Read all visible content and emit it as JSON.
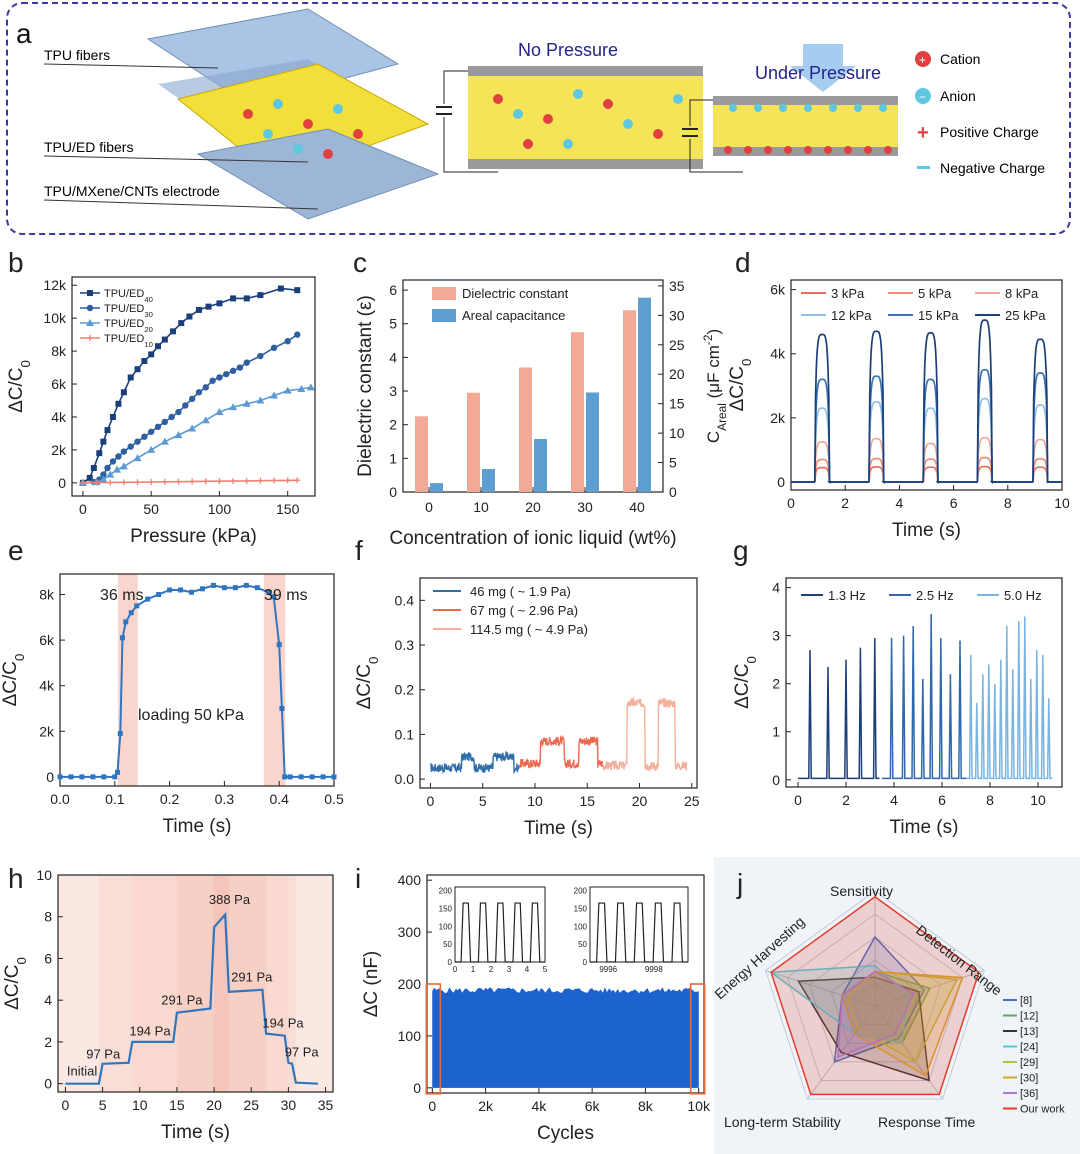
{
  "panel_a": {
    "label": "a",
    "layers": [
      "TPU fibers",
      "TPU/ED fibers",
      "TPU/MXene/CNTs electrode"
    ],
    "state_no_pressure": "No Pressure",
    "state_under_pressure": "Under Pressure",
    "legend": [
      "Cation",
      "Anion",
      "Positive Charge",
      "Negative Charge"
    ],
    "colors": {
      "border": "#3a3aa0",
      "yellow": "#f3df3a",
      "blue": "#8fb3d8"
    }
  },
  "chart_data": [
    {
      "id": "b",
      "label": "b",
      "type": "line",
      "xlabel": "Pressure (kPa)",
      "ylabel": "ΔC/C",
      "ylabel_sub": "0",
      "xlim": [
        -8,
        170
      ],
      "ylim": [
        -800,
        12500
      ],
      "xticks": [
        0,
        50,
        100,
        150
      ],
      "xtick_labels": [
        "0",
        "50",
        "100",
        "150"
      ],
      "yticks": [
        0,
        2000,
        4000,
        6000,
        8000,
        10000,
        12000
      ],
      "ytick_labels": [
        "0",
        "2k",
        "4k",
        "6k",
        "8k",
        "10k",
        "12k"
      ],
      "series": [
        {
          "name": "TPU/ED",
          "sub": "40",
          "color": "#1b3f7a",
          "marker": "square",
          "x": [
            0,
            5,
            8,
            12,
            15,
            18,
            22,
            26,
            30,
            35,
            40,
            45,
            50,
            55,
            60,
            66,
            72,
            78,
            85,
            92,
            100,
            110,
            120,
            130,
            145,
            157
          ],
          "y": [
            0,
            300,
            900,
            1800,
            2500,
            3200,
            4000,
            4800,
            5500,
            6400,
            6900,
            7400,
            7800,
            8300,
            8700,
            9200,
            9700,
            10100,
            10500,
            10700,
            10900,
            11200,
            11200,
            11400,
            11800,
            11700
          ]
        },
        {
          "name": "TPU/ED",
          "sub": "30",
          "color": "#2f5fa0",
          "marker": "circle",
          "x": [
            0,
            8,
            12,
            15,
            18,
            22,
            26,
            30,
            35,
            40,
            45,
            50,
            55,
            60,
            65,
            70,
            75,
            80,
            85,
            90,
            95,
            100,
            105,
            110,
            115,
            120,
            130,
            140,
            150,
            157
          ],
          "y": [
            0,
            50,
            200,
            500,
            900,
            1300,
            1600,
            1900,
            2200,
            2500,
            2800,
            3100,
            3400,
            3700,
            4000,
            4300,
            4700,
            5100,
            5500,
            5800,
            6200,
            6400,
            6600,
            6800,
            7000,
            7300,
            7700,
            8200,
            8600,
            9000
          ]
        },
        {
          "name": "TPU/ED",
          "sub": "20",
          "color": "#5a9bd4",
          "marker": "triangle",
          "x": [
            0,
            10,
            15,
            20,
            25,
            30,
            40,
            50,
            60,
            70,
            80,
            90,
            100,
            110,
            120,
            130,
            140,
            150,
            160,
            167
          ],
          "y": [
            0,
            50,
            200,
            500,
            800,
            1000,
            1500,
            2000,
            2500,
            2900,
            3300,
            3800,
            4300,
            4600,
            4800,
            5000,
            5300,
            5600,
            5700,
            5800
          ]
        },
        {
          "name": "TPU/ED",
          "sub": "10",
          "color": "#f08070",
          "marker": "plus",
          "x": [
            0,
            10,
            20,
            30,
            40,
            50,
            60,
            70,
            80,
            90,
            100,
            110,
            120,
            130,
            140,
            150,
            157
          ],
          "y": [
            0,
            10,
            20,
            30,
            40,
            50,
            60,
            70,
            80,
            90,
            100,
            110,
            120,
            130,
            140,
            150,
            160
          ]
        }
      ]
    },
    {
      "id": "c",
      "label": "c",
      "type": "bar",
      "xlabel": "Concentration of ionic liquid (wt%)",
      "ylabel": "Dielectric constant (ε)",
      "y2label": "C",
      "y2label_sub": "Areal",
      "y2label_tail": " (μF cm",
      "y2label_sup": "-2",
      "y2label_end": ")",
      "categories": [
        "0",
        "10",
        "20",
        "30",
        "40"
      ],
      "ylim": [
        0,
        6.3
      ],
      "yticks": [
        0,
        1,
        2,
        3,
        4,
        5,
        6
      ],
      "ytick_labels": [
        "0",
        "1",
        "2",
        "3",
        "4",
        "5",
        "6"
      ],
      "y2lim": [
        0,
        36
      ],
      "y2ticks": [
        0,
        5,
        10,
        15,
        20,
        25,
        30,
        35
      ],
      "y2tick_labels": [
        "0",
        "5",
        "10",
        "15",
        "20",
        "25",
        "30",
        "35"
      ],
      "series": [
        {
          "name": "Dielectric constant",
          "axis": "left",
          "color": "#f4a896",
          "values": [
            2.25,
            2.95,
            3.7,
            4.75,
            5.4
          ]
        },
        {
          "name": "Areal capacitance",
          "axis": "right",
          "color": "#5d9fd0",
          "values": [
            1.5,
            3.9,
            9.0,
            16.9,
            33.0
          ]
        }
      ]
    },
    {
      "id": "d",
      "label": "d",
      "type": "line",
      "xlabel": "Time (s)",
      "ylabel": "ΔC/C",
      "ylabel_sub": "0",
      "xlim": [
        0,
        10
      ],
      "ylim": [
        -250,
        6300
      ],
      "xticks": [
        0,
        2,
        4,
        6,
        8,
        10
      ],
      "xtick_labels": [
        "0",
        "2",
        "4",
        "6",
        "8",
        "10"
      ],
      "yticks": [
        0,
        2000,
        4000,
        6000
      ],
      "ytick_labels": [
        "0",
        "2k",
        "4k",
        "6k"
      ],
      "pulse_centers": [
        1.15,
        3.15,
        5.15,
        7.15,
        9.2
      ],
      "pulse_half_width": 0.27,
      "series": [
        {
          "name": "3 kPa",
          "color": "#e8705a",
          "peaks": [
            450,
            470,
            460,
            480,
            460
          ]
        },
        {
          "name": "5 kPa",
          "color": "#ef8e78",
          "peaks": [
            700,
            730,
            710,
            760,
            720
          ]
        },
        {
          "name": "8 kPa",
          "color": "#f2a898",
          "peaks": [
            1250,
            1350,
            1200,
            1380,
            1320
          ]
        },
        {
          "name": "12 kPa",
          "color": "#8dc0e6",
          "peaks": [
            2300,
            2500,
            2300,
            2600,
            2400
          ]
        },
        {
          "name": "15 kPa",
          "color": "#3a73b5",
          "peaks": [
            3200,
            3300,
            3200,
            3500,
            3400
          ]
        },
        {
          "name": "25 kPa",
          "color": "#1d3f78",
          "peaks": [
            4600,
            4700,
            4650,
            5050,
            4450
          ]
        }
      ]
    },
    {
      "id": "e",
      "label": "e",
      "type": "line",
      "xlabel": "Time (s)",
      "ylabel": "ΔC/C",
      "ylabel_sub": "0",
      "xlim": [
        0,
        0.5
      ],
      "ylim": [
        -400,
        8900
      ],
      "xticks": [
        0.0,
        0.1,
        0.2,
        0.3,
        0.4,
        0.5
      ],
      "xtick_labels": [
        "0.0",
        "0.1",
        "0.2",
        "0.3",
        "0.4",
        "0.5"
      ],
      "yticks": [
        0,
        2000,
        4000,
        6000,
        8000
      ],
      "ytick_labels": [
        "0",
        "2k",
        "4k",
        "6k",
        "8k"
      ],
      "annotations": [
        "36 ms",
        "39 ms",
        "loading 50 kPa"
      ],
      "shaded_spans": [
        [
          0.106,
          0.142
        ],
        [
          0.372,
          0.411
        ]
      ],
      "series": [
        {
          "name": "loading 50 kPa",
          "color": "#2f75c0",
          "x": [
            0,
            0.02,
            0.04,
            0.06,
            0.08,
            0.1,
            0.105,
            0.11,
            0.114,
            0.12,
            0.13,
            0.14,
            0.16,
            0.18,
            0.2,
            0.22,
            0.24,
            0.26,
            0.28,
            0.3,
            0.32,
            0.34,
            0.36,
            0.38,
            0.39,
            0.4,
            0.405,
            0.41,
            0.42,
            0.44,
            0.46,
            0.48,
            0.5
          ],
          "y": [
            0,
            0,
            0,
            0,
            0,
            0,
            200,
            1900,
            6100,
            6800,
            7200,
            7500,
            7800,
            8000,
            8200,
            8200,
            8100,
            8250,
            8400,
            8300,
            8300,
            8400,
            8300,
            8100,
            7900,
            5800,
            3000,
            0,
            0,
            0,
            0,
            0,
            0
          ]
        }
      ]
    },
    {
      "id": "f",
      "label": "f",
      "type": "line",
      "xlabel": "Time (s)",
      "ylabel": "ΔC/C",
      "ylabel_sub": "0",
      "xlim": [
        -1,
        25.5
      ],
      "ylim": [
        -0.02,
        0.45
      ],
      "xticks": [
        0,
        5,
        10,
        15,
        20,
        25
      ],
      "xtick_labels": [
        "0",
        "5",
        "10",
        "15",
        "20",
        "25"
      ],
      "yticks": [
        0.0,
        0.1,
        0.2,
        0.3,
        0.4
      ],
      "ytick_labels": [
        "0.0",
        "0.1",
        "0.2",
        "0.3",
        "0.4"
      ],
      "series": [
        {
          "name": "46 mg ( ~ 1.9 Pa)",
          "color": "#2f6ea8",
          "t_range": [
            0,
            8.5
          ],
          "base": 0.025,
          "high": 0.05,
          "pulses": [
            [
              3.0,
              4.2
            ],
            [
              6.0,
              8.0
            ]
          ]
        },
        {
          "name": "67 mg ( ~ 2.96 Pa)",
          "color": "#ea6a50",
          "t_range": [
            8.5,
            16.5
          ],
          "base": 0.035,
          "high": 0.085,
          "pulses": [
            [
              10.5,
              12.8
            ],
            [
              14.2,
              16.0
            ]
          ]
        },
        {
          "name": "114.5 mg ( ~ 4.9 Pa)",
          "color": "#f4b09c",
          "t_range": [
            16.5,
            24.5
          ],
          "base": 0.03,
          "high": 0.17,
          "pulses": [
            [
              18.8,
              20.5
            ],
            [
              21.8,
              23.4
            ]
          ]
        }
      ]
    },
    {
      "id": "g",
      "label": "g",
      "type": "line",
      "xlabel": "Time (s)",
      "ylabel": "ΔC/C",
      "ylabel_sub": "0",
      "xlim": [
        -0.5,
        11
      ],
      "ylim": [
        -0.15,
        4.2
      ],
      "xticks": [
        0,
        2,
        4,
        6,
        8,
        10
      ],
      "xtick_labels": [
        "0",
        "2",
        "4",
        "6",
        "8",
        "10"
      ],
      "yticks": [
        0,
        1,
        2,
        3,
        4
      ],
      "ytick_labels": [
        "0",
        "1",
        "2",
        "3",
        "4"
      ],
      "series": [
        {
          "name": "1.3 Hz",
          "color": "#1d3f78",
          "t_range": [
            0,
            3.4
          ],
          "spikes_t": [
            0.5,
            1.25,
            2.0,
            2.6,
            3.2
          ],
          "spikes_h": [
            2.7,
            2.35,
            2.5,
            2.75,
            2.95
          ]
        },
        {
          "name": "2.5 Hz",
          "color": "#2e68ae",
          "t_range": [
            3.5,
            7.0
          ],
          "spikes_t": [
            3.9,
            4.4,
            4.8,
            5.2,
            5.55,
            5.95,
            6.35,
            6.75
          ],
          "spikes_h": [
            2.95,
            3.0,
            3.2,
            2.1,
            3.45,
            2.95,
            2.2,
            2.9
          ]
        },
        {
          "name": "5.0 Hz",
          "color": "#7ab4e0",
          "t_range": [
            7.0,
            10.6
          ],
          "spikes_t": [
            7.2,
            7.45,
            7.7,
            7.95,
            8.2,
            8.45,
            8.7,
            8.95,
            9.2,
            9.45,
            9.7,
            9.95,
            10.2,
            10.45
          ],
          "spikes_h": [
            2.6,
            1.6,
            2.2,
            2.4,
            2.0,
            2.5,
            3.2,
            2.3,
            3.3,
            3.4,
            2.1,
            2.7,
            2.6,
            1.7
          ]
        }
      ]
    },
    {
      "id": "h",
      "label": "h",
      "type": "line",
      "xlabel": "Time (s)",
      "ylabel": "ΔC/C",
      "ylabel_sub": "0",
      "xlim": [
        -1,
        36
      ],
      "ylim": [
        -0.4,
        10
      ],
      "xticks": [
        0,
        5,
        10,
        15,
        20,
        25,
        30,
        35
      ],
      "xtick_labels": [
        "0",
        "5",
        "10",
        "15",
        "20",
        "25",
        "30",
        "35"
      ],
      "yticks": [
        0,
        2,
        4,
        6,
        8,
        10
      ],
      "ytick_labels": [
        "0",
        "2",
        "4",
        "6",
        "8",
        "10"
      ],
      "step_annotations": [
        "Initial",
        "97 Pa",
        "194 Pa",
        "291 Pa",
        "388 Pa",
        "291 Pa",
        "194 Pa",
        "97 Pa"
      ],
      "series": [
        {
          "name": "staircase",
          "color": "#2f75c0",
          "x": [
            0,
            4.5,
            5,
            8.5,
            9,
            14.5,
            15,
            19.5,
            20,
            21.5,
            22,
            26.5,
            27,
            29.5,
            30,
            30.5,
            31,
            34
          ],
          "y": [
            0,
            0,
            0.95,
            1.0,
            2.0,
            2.0,
            3.4,
            3.6,
            7.5,
            8.1,
            4.4,
            4.5,
            2.4,
            2.3,
            1.0,
            0.95,
            0.05,
            0.0
          ]
        }
      ]
    },
    {
      "id": "i",
      "label": "i",
      "type": "area",
      "xlabel": "Cycles",
      "ylabel": "ΔC (nF)",
      "xlim": [
        -200,
        10200
      ],
      "ylim": [
        -10,
        410
      ],
      "xticks": [
        0,
        2000,
        4000,
        6000,
        8000,
        10000
      ],
      "xtick_labels": [
        "0",
        "2k",
        "4k",
        "6k",
        "8k",
        "10k"
      ],
      "yticks": [
        0,
        100,
        200,
        300,
        400
      ],
      "ytick_labels": [
        "0",
        "100",
        "200",
        "300",
        "400"
      ],
      "band_top": 182,
      "color": "#1c63cf",
      "inset_left": {
        "xticks": [
          0,
          1,
          2,
          3,
          4,
          5
        ],
        "xtick_labels": [
          "0",
          "1",
          "2",
          "3",
          "4",
          "5"
        ],
        "yticks": [
          0,
          50,
          100,
          150,
          200
        ],
        "ytick_labels": [
          "0",
          "50",
          "100",
          "150",
          "200"
        ],
        "peak": 165
      },
      "inset_right": {
        "xticks": [
          9996,
          9998
        ],
        "xtick_labels": [
          "9996",
          "9998"
        ],
        "yticks": [
          0,
          50,
          100,
          150,
          200
        ],
        "ytick_labels": [
          "0",
          "50",
          "100",
          "150",
          "200"
        ],
        "peak": 165
      }
    },
    {
      "id": "j",
      "label": "j",
      "type": "radar",
      "axes": [
        "Sensitivity",
        "Detection Range",
        "Response Time",
        "Long-term Stability",
        "Energy Harvesting"
      ],
      "series": [
        {
          "name": "[8]",
          "color": "#4a6fc8",
          "values": [
            0.6,
            0.45,
            0.35,
            0.6,
            0.3
          ]
        },
        {
          "name": "[12]",
          "color": "#5cae5c",
          "values": [
            0.3,
            0.5,
            0.4,
            0.3,
            0.3
          ]
        },
        {
          "name": "[13]",
          "color": "#333333",
          "values": [
            0.25,
            0.4,
            0.8,
            0.5,
            0.7
          ]
        },
        {
          "name": "[24]",
          "color": "#4ec9d8",
          "values": [
            0.35,
            0.3,
            0.4,
            0.3,
            0.95
          ]
        },
        {
          "name": "[29]",
          "color": "#b3c23a",
          "values": [
            0.3,
            0.75,
            0.6,
            0.25,
            0.25
          ]
        },
        {
          "name": "[30]",
          "color": "#d9a52a",
          "values": [
            0.3,
            0.8,
            0.75,
            0.3,
            0.3
          ]
        },
        {
          "name": "[36]",
          "color": "#b07ad8",
          "values": [
            0.3,
            0.35,
            0.3,
            0.55,
            0.3
          ]
        },
        {
          "name": "Our work",
          "color": "#e63a2e",
          "values": [
            0.95,
            0.95,
            0.95,
            0.95,
            0.95
          ]
        }
      ]
    }
  ]
}
